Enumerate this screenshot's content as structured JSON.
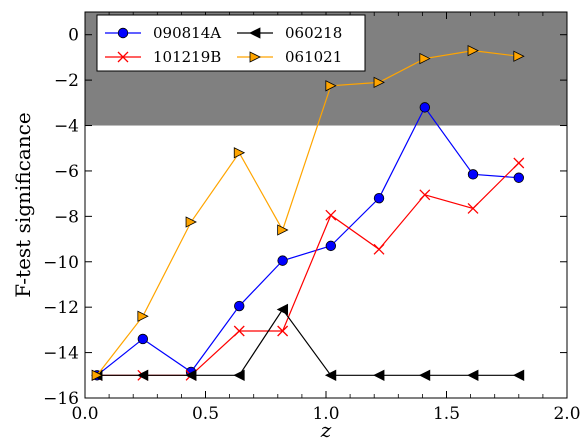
{
  "chart_data": {
    "type": "line",
    "xlabel": "z",
    "ylabel": "F-test significance",
    "xlim": [
      0.0,
      2.0
    ],
    "ylim": [
      -16,
      1
    ],
    "xticks": [
      0.0,
      0.5,
      1.0,
      1.5,
      2.0
    ],
    "xtick_labels": [
      "0.0",
      "0.5",
      "1.0",
      "1.5",
      "2.0"
    ],
    "yticks": [
      0,
      -2,
      -4,
      -6,
      -8,
      -10,
      -12,
      -14,
      -16
    ],
    "ytick_labels": [
      "0",
      "−2",
      "−4",
      "−6",
      "−8",
      "−10",
      "−12",
      "−14",
      "−16"
    ],
    "shaded_region": {
      "y_from": -4,
      "y_to": 1,
      "color": "#808080"
    },
    "grid": false,
    "legend_position": "top-left",
    "series": [
      {
        "name": "090814A",
        "color": "#0000ff",
        "marker": "circle",
        "x": [
          0.05,
          0.24,
          0.44,
          0.64,
          0.82,
          1.02,
          1.22,
          1.41,
          1.61,
          1.8
        ],
        "y": [
          -15.0,
          -13.4,
          -14.85,
          -11.95,
          -9.95,
          -9.3,
          -7.2,
          -3.2,
          -6.15,
          -6.3
        ]
      },
      {
        "name": "101219B",
        "color": "#ff0000",
        "marker": "x",
        "x": [
          0.05,
          0.24,
          0.44,
          0.64,
          0.82,
          1.02,
          1.22,
          1.41,
          1.61,
          1.8
        ],
        "y": [
          -15.0,
          -15.0,
          -15.0,
          -13.05,
          -13.05,
          -7.95,
          -9.45,
          -7.05,
          -7.65,
          -5.65
        ]
      },
      {
        "name": "060218",
        "color": "#000000",
        "marker": "triangle-left",
        "x": [
          0.05,
          0.24,
          0.44,
          0.64,
          0.82,
          1.02,
          1.22,
          1.41,
          1.61,
          1.8
        ],
        "y": [
          -15.0,
          -15.0,
          -15.0,
          -15.0,
          -12.1,
          -15.0,
          -15.0,
          -15.0,
          -15.0,
          -15.0
        ]
      },
      {
        "name": "061021",
        "color": "#ffa500",
        "marker": "triangle-right",
        "x": [
          0.05,
          0.24,
          0.44,
          0.64,
          0.82,
          1.02,
          1.22,
          1.41,
          1.61,
          1.8
        ],
        "y": [
          -15.0,
          -12.4,
          -8.25,
          -5.2,
          -8.6,
          -2.25,
          -2.1,
          -1.05,
          -0.7,
          -0.95
        ]
      }
    ]
  }
}
